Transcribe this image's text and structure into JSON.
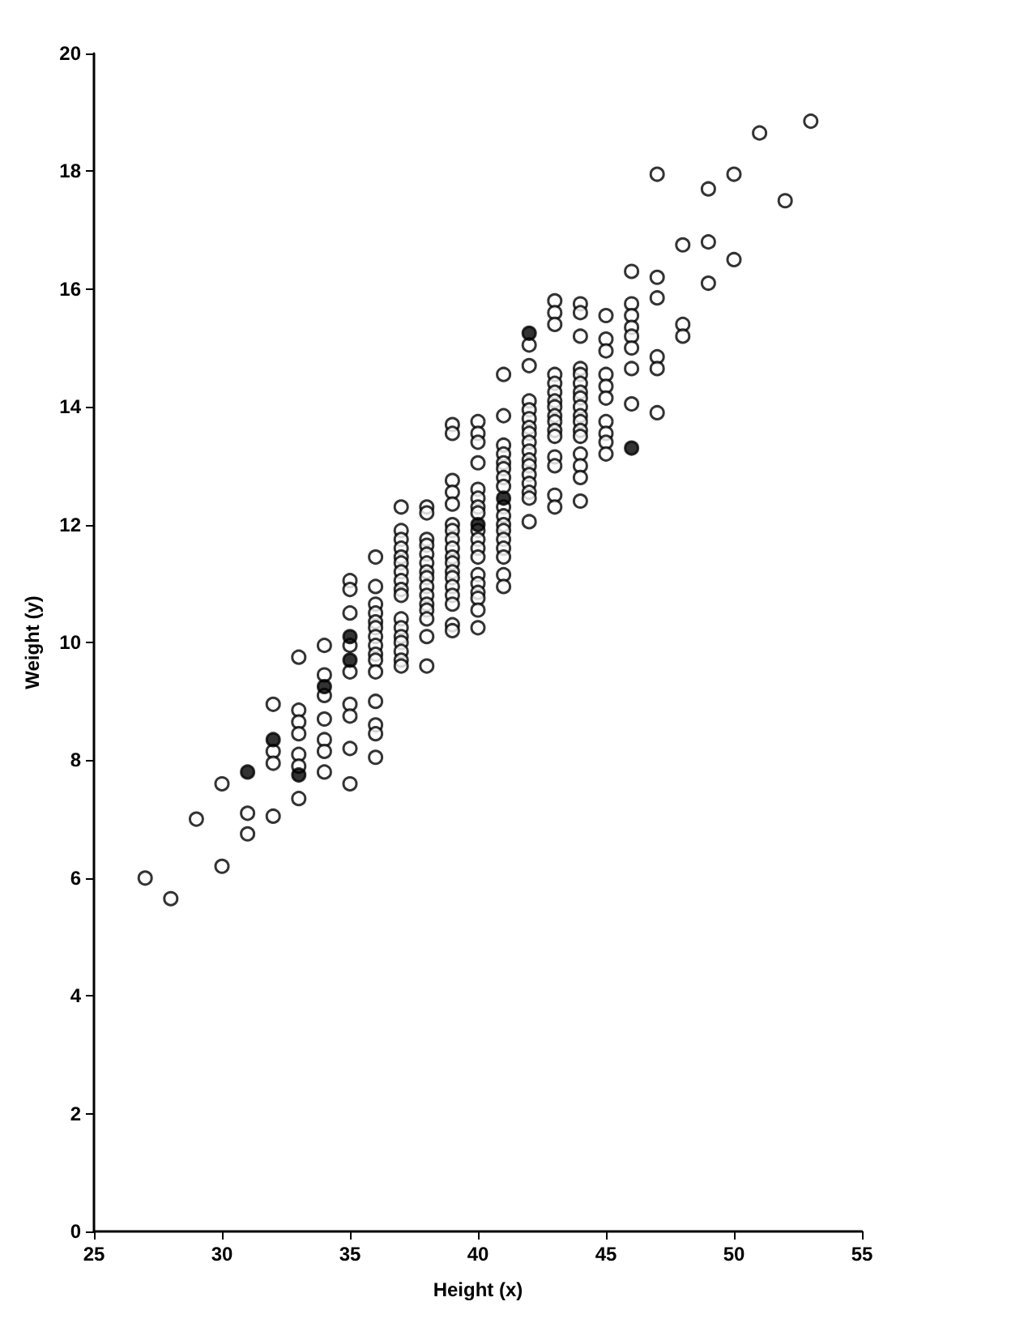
{
  "chart_data": {
    "type": "scatter",
    "xlabel": "Height (x)",
    "ylabel": "Weight (y)",
    "xlim": [
      25,
      55
    ],
    "xticks": [
      25,
      30,
      35,
      40,
      45,
      50,
      55
    ],
    "ylim": [
      0,
      20
    ],
    "yticks": [
      0,
      2,
      4,
      6,
      8,
      10,
      12,
      14,
      16,
      18,
      20
    ],
    "grid": false,
    "marker": "circle",
    "series": [
      {
        "color": "#ffffff",
        "x": [
          27,
          28,
          29,
          30,
          30,
          31,
          31,
          32,
          32,
          32,
          32,
          33,
          33,
          33,
          33,
          33,
          33,
          33,
          34,
          34,
          34,
          34,
          34,
          34,
          34,
          35,
          35,
          35,
          35,
          35,
          35,
          35,
          35,
          35,
          36,
          36,
          36,
          36,
          36,
          36,
          36,
          36,
          36,
          36,
          36,
          36,
          36,
          36,
          36,
          37,
          37,
          37,
          37,
          37,
          37,
          37,
          37,
          37,
          37,
          37,
          37,
          37,
          37,
          37,
          37,
          37,
          38,
          38,
          38,
          38,
          38,
          38,
          38,
          38,
          38,
          38,
          38,
          38,
          38,
          38,
          38,
          39,
          39,
          39,
          39,
          39,
          39,
          39,
          39,
          39,
          39,
          39,
          39,
          39,
          39,
          39,
          39,
          39,
          39,
          40,
          40,
          40,
          40,
          40,
          40,
          40,
          40,
          40,
          40,
          40,
          40,
          40,
          40,
          40,
          40,
          40,
          40,
          41,
          41,
          41,
          41,
          41,
          41,
          41,
          41,
          41,
          41,
          41,
          41,
          41,
          41,
          41,
          41,
          41,
          42,
          42,
          42,
          42,
          42,
          42,
          42,
          42,
          42,
          42,
          42,
          42,
          42,
          42,
          42,
          42,
          43,
          43,
          43,
          43,
          43,
          43,
          43,
          43,
          43,
          43,
          43,
          43,
          43,
          43,
          43,
          43,
          44,
          44,
          44,
          44,
          44,
          44,
          44,
          44,
          44,
          44,
          44,
          44,
          44,
          44,
          44,
          44,
          44,
          45,
          45,
          45,
          45,
          45,
          45,
          45,
          45,
          45,
          45,
          46,
          46,
          46,
          46,
          46,
          46,
          46,
          46,
          47,
          47,
          47,
          47,
          47,
          47,
          48,
          48,
          48,
          49,
          49,
          49,
          50,
          50,
          51,
          52,
          53
        ],
        "values": [
          6.0,
          5.65,
          7.0,
          7.6,
          6.2,
          7.1,
          6.75,
          8.95,
          8.15,
          7.95,
          7.05,
          9.75,
          8.85,
          8.65,
          8.45,
          8.1,
          7.9,
          7.35,
          9.95,
          9.45,
          9.1,
          8.7,
          8.35,
          8.15,
          7.8,
          11.05,
          10.9,
          10.5,
          9.95,
          9.5,
          8.95,
          8.75,
          8.2,
          7.6,
          11.45,
          10.95,
          10.65,
          10.5,
          10.35,
          10.25,
          10.1,
          9.95,
          9.8,
          9.7,
          9.5,
          9.0,
          8.6,
          8.45,
          8.05,
          12.3,
          11.9,
          11.75,
          11.6,
          11.45,
          11.35,
          11.2,
          11.05,
          10.9,
          10.8,
          10.4,
          10.25,
          10.1,
          10.0,
          9.85,
          9.7,
          9.6,
          12.3,
          12.2,
          11.75,
          11.65,
          11.5,
          11.35,
          11.2,
          11.1,
          10.95,
          10.8,
          10.65,
          10.55,
          10.4,
          10.1,
          9.6,
          13.7,
          13.55,
          12.75,
          12.55,
          12.35,
          12.0,
          11.9,
          11.75,
          11.6,
          11.45,
          11.35,
          11.2,
          11.1,
          10.95,
          10.8,
          10.65,
          10.3,
          10.2,
          13.75,
          13.55,
          13.4,
          13.05,
          12.6,
          12.45,
          12.3,
          12.2,
          11.9,
          11.75,
          11.6,
          11.45,
          11.15,
          11.0,
          10.85,
          10.75,
          10.55,
          10.25,
          14.55,
          13.85,
          13.35,
          13.2,
          13.05,
          12.95,
          12.8,
          12.65,
          12.3,
          12.15,
          12.0,
          11.9,
          11.75,
          11.6,
          11.45,
          11.15,
          10.95,
          15.05,
          14.7,
          14.1,
          13.95,
          13.8,
          13.65,
          13.55,
          13.4,
          13.25,
          13.1,
          13.0,
          12.85,
          12.7,
          12.55,
          12.45,
          12.05,
          15.8,
          15.6,
          15.4,
          14.55,
          14.4,
          14.25,
          14.1,
          14.0,
          13.85,
          13.75,
          13.6,
          13.5,
          13.15,
          13.0,
          12.5,
          12.3,
          15.75,
          15.6,
          15.2,
          14.65,
          14.55,
          14.4,
          14.25,
          14.15,
          14.0,
          13.85,
          13.75,
          13.6,
          13.5,
          13.2,
          13.0,
          12.8,
          12.4,
          15.55,
          15.15,
          14.95,
          14.55,
          14.35,
          14.15,
          13.75,
          13.55,
          13.4,
          13.2,
          16.3,
          15.75,
          15.55,
          15.35,
          15.2,
          15.0,
          14.65,
          14.05,
          17.95,
          16.2,
          15.85,
          14.85,
          14.65,
          13.9,
          16.75,
          15.4,
          15.2,
          17.7,
          16.8,
          16.1,
          17.95,
          16.5,
          18.65,
          17.5,
          18.85
        ]
      },
      {
        "color": "#000000",
        "x": [
          31,
          32,
          33,
          34,
          35,
          35,
          40,
          41,
          42,
          46
        ],
        "values": [
          7.8,
          8.35,
          7.75,
          9.25,
          10.1,
          9.7,
          12.0,
          12.45,
          15.25,
          13.3
        ]
      }
    ]
  }
}
